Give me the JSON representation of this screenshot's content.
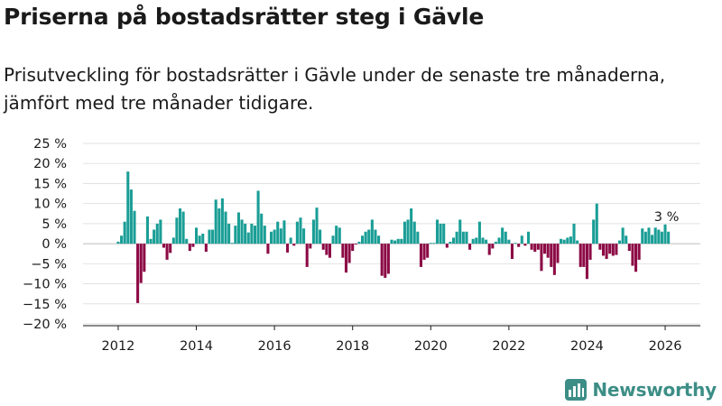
{
  "title": "Priserna på bostadsrätter steg i Gävle",
  "subtitle": "Prisutveckling för bostadsrätter i Gävle under de senaste tre månaderna, jämfört med tre månader tidigare.",
  "brand": "Newsworthy",
  "colors": {
    "positive": "#1a9e96",
    "negative": "#8c0a45",
    "grid": "#e2e2e2",
    "brand": "#3d8e86"
  },
  "chart_data": {
    "type": "bar",
    "title": "Priserna på bostadsrätter steg i Gävle",
    "xlabel": "",
    "ylabel": "",
    "ylim": [
      -20,
      25
    ],
    "xlim": [
      2011.1,
      2026.9
    ],
    "y_ticks": [
      25,
      20,
      15,
      10,
      5,
      0,
      -5,
      -10,
      -15,
      -20
    ],
    "y_tick_labels": [
      "25 %",
      "20 %",
      "15 %",
      "10 %",
      "5 %",
      "0 %",
      "−5 %",
      "−10 %",
      "−15 %",
      "−20 %"
    ],
    "x_ticks": [
      2012,
      2014,
      2016,
      2018,
      2020,
      2022,
      2024,
      2026
    ],
    "x_tick_labels": [
      "2012",
      "2014",
      "2016",
      "2018",
      "2020",
      "2022",
      "2024",
      "2026"
    ],
    "start_year": 2012.0,
    "step": 0.08333,
    "values": [
      0.5,
      2,
      5.5,
      18,
      13.5,
      8.2,
      -14.8,
      -9.8,
      -7,
      6.8,
      1.2,
      3.5,
      5,
      6,
      -1,
      -4,
      -2.3,
      1.5,
      6.5,
      8.8,
      8,
      1.2,
      -1.8,
      -0.8,
      4,
      2,
      2.5,
      -2,
      3.5,
      3.5,
      11,
      8.8,
      11.3,
      8,
      5,
      0.2,
      4.5,
      7.8,
      6,
      5,
      2.8,
      5,
      4.5,
      13.2,
      7.5,
      4.5,
      -2.5,
      3,
      3.5,
      5.5,
      3.8,
      5.8,
      -2.2,
      1.5,
      -0.5,
      5.5,
      6.5,
      3.8,
      -5.8,
      -1.2,
      6,
      9,
      3.5,
      -1.5,
      -2.8,
      -3.5,
      2,
      4.5,
      4,
      -3.5,
      -7.2,
      -4.8,
      -1.8,
      -0.2,
      0.5,
      2,
      3,
      3.5,
      6,
      3.5,
      2,
      -8,
      -8.5,
      -7.5,
      1,
      0.8,
      1.2,
      1.2,
      5.5,
      6,
      8.8,
      5.5,
      3,
      -5.8,
      -4,
      -3.5,
      0.2,
      0.2,
      6,
      5,
      5,
      -1,
      0.5,
      1.5,
      3,
      6,
      3,
      3,
      -1.5,
      1.2,
      1.5,
      5.5,
      1.5,
      1,
      -2.8,
      -1.2,
      0.5,
      1.5,
      4,
      3,
      1,
      -3.8,
      0.2,
      -0.8,
      2,
      -0.5,
      3,
      -1.5,
      -2,
      -1.5,
      -6.8,
      -2.5,
      -3.5,
      -5.8,
      -7.8,
      -4.8,
      1.2,
      1,
      1.5,
      1.8,
      5,
      0.8,
      -5.8,
      -5.8,
      -8.8,
      -4,
      6,
      10,
      -1.5,
      -3,
      -3.8,
      -2.5,
      -3,
      -2.8,
      0.8,
      4,
      2,
      -1.8,
      -5.5,
      -7,
      -4,
      3.8,
      3,
      4,
      2.2,
      4,
      3.5,
      3,
      4.8,
      3
    ],
    "annotation": "3 %"
  }
}
